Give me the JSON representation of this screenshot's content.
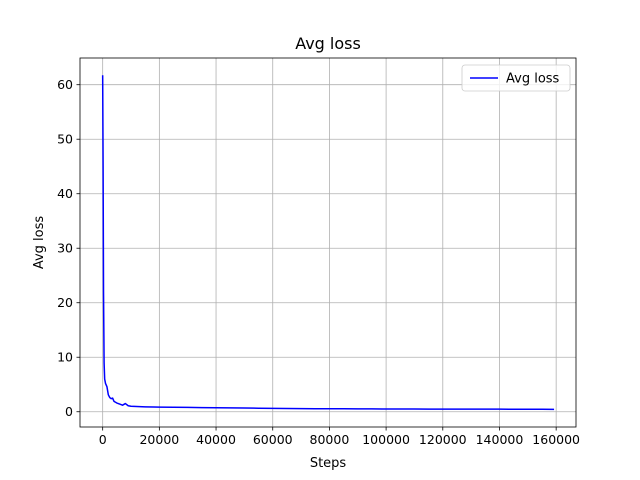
{
  "chart_data": {
    "type": "line",
    "title": "Avg loss",
    "xlabel": "Steps",
    "ylabel": "Avg loss",
    "xlim": [
      -8000,
      167000
    ],
    "ylim": [
      -2.8,
      64.9
    ],
    "x_ticks": [
      0,
      20000,
      40000,
      60000,
      80000,
      100000,
      120000,
      140000,
      160000
    ],
    "y_ticks": [
      0,
      10,
      20,
      30,
      40,
      50,
      60
    ],
    "grid": true,
    "legend": {
      "position": "top-right",
      "entries": [
        "Avg loss"
      ]
    },
    "series": [
      {
        "name": "Avg loss",
        "color": "#0000ff",
        "points": [
          [
            0,
            61.6
          ],
          [
            150,
            45.0
          ],
          [
            300,
            22.0
          ],
          [
            500,
            9.0
          ],
          [
            700,
            6.0
          ],
          [
            1000,
            5.2
          ],
          [
            1500,
            4.6
          ],
          [
            2000,
            3.1
          ],
          [
            2500,
            2.6
          ],
          [
            3000,
            2.4
          ],
          [
            3500,
            2.5
          ],
          [
            4000,
            1.9
          ],
          [
            5000,
            1.6
          ],
          [
            6000,
            1.4
          ],
          [
            7000,
            1.2
          ],
          [
            8000,
            1.5
          ],
          [
            9000,
            1.1
          ],
          [
            10000,
            1.0
          ],
          [
            12000,
            0.95
          ],
          [
            15000,
            0.9
          ],
          [
            18000,
            0.88
          ],
          [
            20000,
            0.85
          ],
          [
            25000,
            0.82
          ],
          [
            30000,
            0.8
          ],
          [
            35000,
            0.75
          ],
          [
            40000,
            0.72
          ],
          [
            45000,
            0.7
          ],
          [
            50000,
            0.68
          ],
          [
            55000,
            0.65
          ],
          [
            60000,
            0.62
          ],
          [
            65000,
            0.6
          ],
          [
            70000,
            0.58
          ],
          [
            75000,
            0.56
          ],
          [
            80000,
            0.55
          ],
          [
            85000,
            0.54
          ],
          [
            90000,
            0.53
          ],
          [
            95000,
            0.52
          ],
          [
            100000,
            0.51
          ],
          [
            105000,
            0.5
          ],
          [
            110000,
            0.5
          ],
          [
            115000,
            0.49
          ],
          [
            120000,
            0.49
          ],
          [
            125000,
            0.48
          ],
          [
            130000,
            0.48
          ],
          [
            135000,
            0.47
          ],
          [
            140000,
            0.47
          ],
          [
            145000,
            0.46
          ],
          [
            150000,
            0.45
          ],
          [
            155000,
            0.45
          ],
          [
            159000,
            0.44
          ]
        ]
      }
    ]
  }
}
